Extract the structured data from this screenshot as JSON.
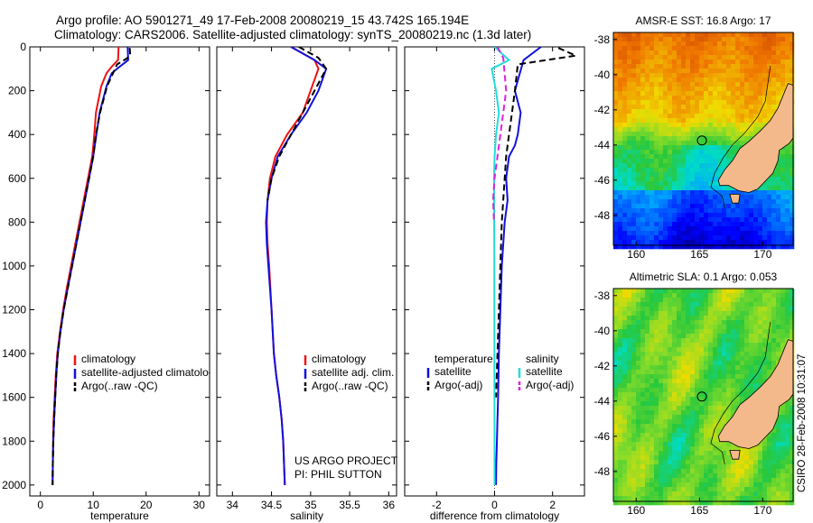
{
  "header": {
    "title_line1": "Argo profile: AO 5901271_49 17-Feb-2008 20080219_15 43.742S 165.194E",
    "title_line2": "Climatology: CARS2006. Satellite-adjusted climatology: synTS_20080219.nc (1.3d later)"
  },
  "chart_data": [
    {
      "type": "line",
      "panel": "temperature",
      "xlabel": "temperature",
      "xlim": [
        -2,
        32
      ],
      "xticks": [
        0,
        10,
        20,
        30
      ],
      "ylim": [
        2050,
        0
      ],
      "yticks": [
        0,
        200,
        400,
        600,
        800,
        1000,
        1200,
        1400,
        1600,
        1800,
        2000
      ],
      "series": [
        {
          "name": "climatology",
          "color": "#ee1111",
          "dash": "solid",
          "x": [
            14.8,
            14.7,
            13.5,
            12.5,
            11.5,
            10.5,
            10.2,
            9.8,
            9.0,
            8.2,
            7.4,
            6.6,
            5.8,
            5.0,
            4.3,
            3.7,
            3.2,
            2.9,
            2.7,
            2.5,
            2.4,
            2.35,
            2.3
          ],
          "y": [
            0,
            60,
            90,
            120,
            180,
            300,
            400,
            500,
            600,
            700,
            800,
            900,
            1000,
            1100,
            1200,
            1300,
            1400,
            1500,
            1600,
            1700,
            1800,
            1900,
            2000
          ]
        },
        {
          "name": "satellite-adjusted climatology",
          "color": "#1111dd",
          "dash": "solid",
          "x": [
            16.5,
            16.6,
            15.0,
            13.5,
            12.5,
            11.2,
            10.6,
            10.0,
            9.2,
            8.4,
            7.6,
            6.8,
            6.0,
            5.2,
            4.4,
            3.8,
            3.3,
            3.0,
            2.8,
            2.6,
            2.45,
            2.35,
            2.3
          ],
          "y": [
            0,
            60,
            90,
            120,
            180,
            300,
            400,
            500,
            600,
            700,
            800,
            900,
            1000,
            1100,
            1200,
            1300,
            1400,
            1500,
            1600,
            1700,
            1800,
            1900,
            2000
          ]
        },
        {
          "name": "Argo(..raw -QC)",
          "color": "#000000",
          "dash": "dashed",
          "x": [
            16.9,
            17.0,
            16.2,
            14.5,
            12.6,
            11.3,
            10.5,
            10.0,
            9.2,
            8.4,
            7.6,
            6.8,
            6.0,
            5.2,
            4.4,
            3.8,
            3.3,
            3.0,
            2.8,
            2.6,
            2.45,
            2.35,
            2.3
          ],
          "y": [
            5,
            40,
            55,
            80,
            180,
            300,
            400,
            500,
            600,
            700,
            800,
            900,
            1000,
            1100,
            1200,
            1300,
            1400,
            1500,
            1600,
            1700,
            1800,
            1900,
            2000
          ]
        }
      ],
      "legend": [
        "climatology",
        "satellite-adjusted climatology",
        "Argo(..raw -QC)"
      ]
    },
    {
      "type": "line",
      "panel": "salinity",
      "xlabel": "salinity",
      "xlim": [
        33.8,
        36.1
      ],
      "xticks": [
        34,
        34.5,
        35,
        35.5,
        36
      ],
      "ylim": [
        2050,
        0
      ],
      "series": [
        {
          "name": "climatology",
          "color": "#ee1111",
          "dash": "solid",
          "x": [
            34.75,
            35.05,
            35.1,
            35.0,
            34.9,
            34.7,
            34.55,
            34.48,
            34.45,
            34.44,
            34.45,
            34.47,
            34.5,
            34.53,
            34.56,
            34.6,
            34.63,
            34.65,
            34.66,
            34.67
          ],
          "y": [
            0,
            60,
            100,
            200,
            300,
            400,
            500,
            600,
            700,
            800,
            900,
            1000,
            1200,
            1400,
            1500,
            1600,
            1700,
            1800,
            1900,
            2000
          ]
        },
        {
          "name": "satellite adj. clim.",
          "color": "#1111dd",
          "dash": "solid",
          "x": [
            34.75,
            35.05,
            35.2,
            35.1,
            34.95,
            34.75,
            34.58,
            34.5,
            34.45,
            34.43,
            34.44,
            34.46,
            34.5,
            34.53,
            34.56,
            34.6,
            34.63,
            34.65,
            34.66,
            34.67
          ],
          "y": [
            0,
            60,
            100,
            200,
            300,
            400,
            500,
            600,
            700,
            800,
            900,
            1000,
            1200,
            1400,
            1500,
            1600,
            1700,
            1800,
            1900,
            2000
          ]
        },
        {
          "name": "Argo(..raw -QC)",
          "color": "#000000",
          "dash": "dashed",
          "x": [
            34.85,
            35.1,
            35.2,
            35.05,
            34.9,
            34.75,
            34.6,
            34.5,
            34.45
          ],
          "y": [
            0,
            50,
            100,
            200,
            300,
            400,
            500,
            600,
            700
          ]
        }
      ],
      "legend": [
        "climatology",
        "satellite adj. clim.",
        "Argo(..raw -QC)"
      ],
      "annotation": [
        "US ARGO PROJECT",
        "PI: PHIL SUTTON"
      ]
    },
    {
      "type": "line",
      "panel": "difference",
      "xlabel": "difference from climatology",
      "xlim": [
        -3.1,
        3.1
      ],
      "xticks": [
        -2,
        0,
        2
      ],
      "ylim": [
        2050,
        0
      ],
      "series": [
        {
          "name": "temperature satellite",
          "color": "#1111dd",
          "dash": "solid",
          "x": [
            1.6,
            1.0,
            0.7,
            0.9,
            0.8,
            0.7,
            0.5,
            0.4,
            0.45,
            0.35,
            0.3,
            0.25,
            0.2,
            0.15,
            0.12,
            0.1,
            0.08,
            0.06,
            0.05
          ],
          "y": [
            0,
            60,
            200,
            300,
            400,
            450,
            500,
            600,
            700,
            800,
            900,
            1000,
            1200,
            1400,
            1600,
            1700,
            1800,
            1900,
            2000
          ]
        },
        {
          "name": "temperature Argo(-adj)",
          "color": "#000000",
          "dash": "dashed",
          "x": [
            2.2,
            2.8,
            0.8,
            0.7,
            0.6,
            0.5,
            0.4,
            0.35,
            0.3,
            0.25,
            0.2,
            0.15,
            0.1,
            0.05
          ],
          "y": [
            5,
            40,
            80,
            200,
            300,
            400,
            500,
            600,
            700,
            800,
            1000,
            1200,
            1400,
            1600
          ]
        },
        {
          "name": "salinity satellite",
          "color": "#22dddd",
          "dash": "solid",
          "x": [
            0.0,
            0.5,
            -0.1,
            0.05,
            0.15,
            0.05,
            0.0,
            -0.02,
            -0.01,
            0.0
          ],
          "y": [
            0,
            60,
            100,
            200,
            300,
            400,
            500,
            600,
            1000,
            2000
          ]
        },
        {
          "name": "salinity Argo(-adj)",
          "color": "#dd22dd",
          "dash": "dashed",
          "x": [
            0.1,
            0.3,
            0.4,
            0.3,
            0.1,
            0.0,
            -0.05,
            -0.02
          ],
          "y": [
            0,
            50,
            200,
            300,
            500,
            600,
            700,
            800
          ]
        }
      ],
      "legend": {
        "temperature_heading": "temperature",
        "salinity_heading": "salinity",
        "temperature": [
          "satellite",
          "Argo(-adj)"
        ],
        "salinity": [
          "satellite",
          "Argo(-adj)"
        ]
      }
    },
    {
      "type": "heatmap",
      "panel": "sst_map",
      "title": "AMSR-E SST: 16.8 Argo: 17",
      "xlim": [
        158.2,
        172.4
      ],
      "xticks": [
        160,
        165,
        170
      ],
      "ylim": [
        -49.7,
        -37.6
      ],
      "yticks": [
        -38,
        -40,
        -42,
        -44,
        -46,
        -48
      ],
      "argo_position": {
        "lon": 165.194,
        "lat": -43.742
      }
    },
    {
      "type": "heatmap",
      "panel": "sla_map",
      "title": "Altimetric SLA: 0.1 Argo: 0.053",
      "xlim": [
        158.2,
        172.4
      ],
      "xticks": [
        160,
        165,
        170
      ],
      "ylim": [
        -49.7,
        -37.6
      ],
      "yticks": [
        -38,
        -40,
        -42,
        -44,
        -46,
        -48
      ],
      "argo_position": {
        "lon": 165.194,
        "lat": -43.742
      }
    }
  ],
  "footer": {
    "credit": "CSIRO 28-Feb-2008 10:31:07"
  },
  "colors": {
    "climatology": "#ee1111",
    "satellite": "#1111dd",
    "argo": "#000000",
    "salinity_satellite": "#22dddd",
    "salinity_argo": "#dd22dd",
    "land": "#f4b98a"
  }
}
